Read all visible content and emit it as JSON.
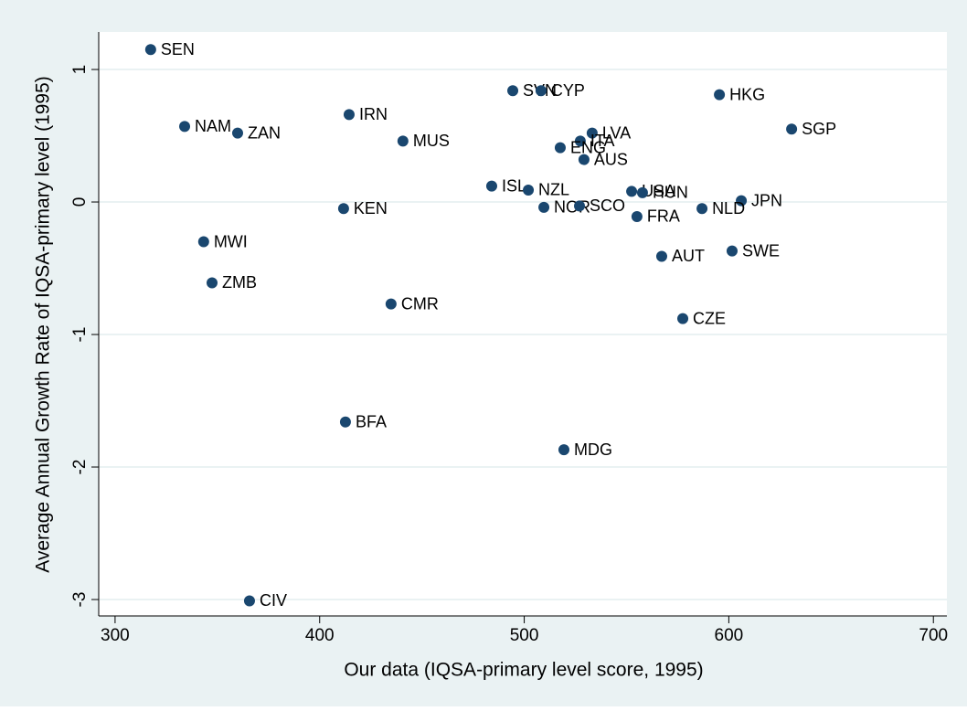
{
  "chart_data": {
    "type": "scatter",
    "xlabel": "Our data (IQSA-primary level score, 1995)",
    "ylabel": "Average Annual Growth Rate of IQSA-primary level (1995)",
    "labels": [
      "SEN",
      "NAM",
      "ZAN",
      "MWI",
      "ZMB",
      "CIV",
      "IRN",
      "MUS",
      "KEN",
      "CMR",
      "BFA",
      "SVN",
      "CYP",
      "HKG",
      "SGP",
      "LVA",
      "ITA",
      "ENG",
      "AUS",
      "ISL",
      "NZL",
      "USA",
      "HUN",
      "JPN",
      "NOR",
      "SCO",
      "FRA",
      "NLD",
      "AUT",
      "SWE",
      "CZE",
      "MDG"
    ],
    "x": [
      317.4,
      334.0,
      359.9,
      343.3,
      347.4,
      365.7,
      414.4,
      440.7,
      411.7,
      434.9,
      412.6,
      494.4,
      508.2,
      595.4,
      630.7,
      533.2,
      527.4,
      517.6,
      529.2,
      484.1,
      502.0,
      552.5,
      557.8,
      606.1,
      509.6,
      527.0,
      555.1,
      586.9,
      567.2,
      601.6,
      577.5,
      519.4
    ],
    "values": [
      1.15,
      0.57,
      0.52,
      -0.3,
      -0.61,
      -3.01,
      0.66,
      0.46,
      -0.05,
      -0.77,
      -1.66,
      0.84,
      0.84,
      0.81,
      0.55,
      0.52,
      0.46,
      0.41,
      0.32,
      0.12,
      0.09,
      0.08,
      0.07,
      0.01,
      -0.04,
      -0.03,
      -0.11,
      -0.05,
      -0.41,
      -0.37,
      -0.88,
      -1.87
    ],
    "color": "#1a476f",
    "xlim": [
      292,
      706.6
    ],
    "ylim": [
      -3.124,
      1.283
    ],
    "xticks": [
      300,
      400,
      500,
      600,
      700
    ],
    "yticks": [
      -3,
      -2,
      -1,
      0,
      1
    ],
    "grid": true
  }
}
